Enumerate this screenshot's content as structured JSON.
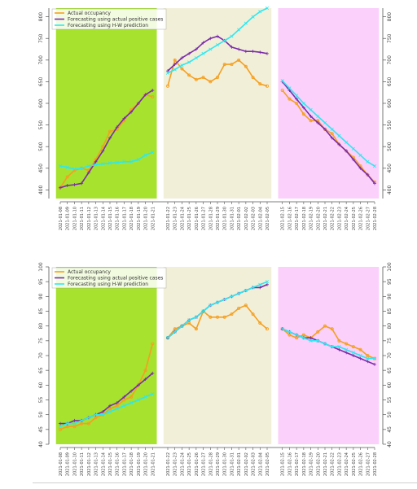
{
  "chart_data": [
    {
      "type": "line",
      "title": "",
      "xlabel": "",
      "ylabel": "",
      "grid": false,
      "legend_position": "top-left",
      "ylim": [
        380,
        820
      ],
      "yticks": [
        400,
        450,
        500,
        550,
        600,
        650,
        700,
        750,
        800
      ],
      "x": [
        "2021-01-08",
        "2021-01-09",
        "2021-01-10",
        "2021-01-11",
        "2021-01-12",
        "2021-01-13",
        "2021-01-14",
        "2021-01-15",
        "2021-01-16",
        "2021-01-17",
        "2021-01-18",
        "2021-01-19",
        "2021-01-20",
        "2021-01-21",
        "2021-01-22",
        "2021-01-23",
        "2021-01-24",
        "2021-01-25",
        "2021-01-26",
        "2021-01-27",
        "2021-01-28",
        "2021-01-29",
        "2021-01-30",
        "2021-01-31",
        "2021-02-01",
        "2021-02-02",
        "2021-02-03",
        "2021-02-04",
        "2021-02-05",
        "2021-02-15",
        "2021-02-16",
        "2021-02-17",
        "2021-02-18",
        "2021-02-19",
        "2021-02-20",
        "2021-02-21",
        "2021-02-22",
        "2021-02-23",
        "2021-02-24",
        "2021-02-25",
        "2021-02-26",
        "2021-02-27",
        "2021-02-28"
      ],
      "regions": [
        {
          "start": 0,
          "end": 13,
          "color": "#a6e22e"
        },
        {
          "start": 14,
          "end": 28,
          "color": "#f2efd9"
        },
        {
          "start": 29,
          "end": 42,
          "color": "#fbd0fb"
        }
      ],
      "series": [
        {
          "name": "Actual occupancy",
          "color": "#f4a020",
          "marker": "o",
          "values": [
            405,
            430,
            445,
            450,
            445,
            470,
            500,
            535,
            540,
            560,
            585,
            600,
            620,
            615,
            640,
            700,
            680,
            665,
            655,
            660,
            650,
            660,
            690,
            690,
            700,
            685,
            660,
            645,
            640,
            630,
            610,
            600,
            575,
            560,
            560,
            540,
            530,
            505,
            490,
            475,
            455,
            435,
            418
          ]
        },
        {
          "name": "Forecasting using actual positive cases",
          "color": "#7a2ca8",
          "marker": "+",
          "values": [
            405,
            410,
            412,
            415,
            440,
            465,
            490,
            520,
            545,
            565,
            580,
            600,
            620,
            630,
            675,
            690,
            705,
            715,
            725,
            740,
            750,
            755,
            745,
            730,
            725,
            720,
            720,
            718,
            715,
            650,
            630,
            610,
            590,
            570,
            555,
            540,
            520,
            505,
            490,
            470,
            450,
            435,
            415
          ]
        },
        {
          "name": "Forecasting using H-W prediction",
          "color": "#2ee8f0",
          "marker": "x",
          "values": [
            455,
            452,
            448,
            450,
            455,
            458,
            460,
            462,
            463,
            465,
            465,
            470,
            480,
            487,
            670,
            678,
            688,
            695,
            705,
            715,
            725,
            735,
            745,
            755,
            770,
            785,
            800,
            812,
            820,
            652,
            635,
            618,
            600,
            585,
            570,
            555,
            540,
            525,
            510,
            495,
            480,
            465,
            455
          ]
        }
      ]
    },
    {
      "type": "line",
      "title": "",
      "xlabel": "",
      "ylabel": "",
      "grid": false,
      "legend_position": "top-left",
      "ylim": [
        40,
        100
      ],
      "yticks": [
        40,
        45,
        50,
        55,
        60,
        65,
        70,
        75,
        80,
        85,
        90,
        95,
        100
      ],
      "x": [
        "2021-01-08",
        "2021-01-09",
        "2021-01-10",
        "2021-01-11",
        "2021-01-12",
        "2021-01-13",
        "2021-01-14",
        "2021-01-15",
        "2021-01-16",
        "2021-01-17",
        "2021-01-18",
        "2021-01-19",
        "2021-01-20",
        "2021-01-21",
        "2021-01-22",
        "2021-01-23",
        "2021-01-24",
        "2021-01-25",
        "2021-01-26",
        "2021-01-27",
        "2021-01-28",
        "2021-01-29",
        "2021-01-30",
        "2021-01-31",
        "2021-02-01",
        "2021-02-02",
        "2021-02-03",
        "2021-02-04",
        "2021-02-05",
        "2021-02-15",
        "2021-02-16",
        "2021-02-17",
        "2021-02-18",
        "2021-02-19",
        "2021-02-20",
        "2021-02-21",
        "2021-02-22",
        "2021-02-23",
        "2021-02-24",
        "2021-02-25",
        "2021-02-26",
        "2021-02-27",
        "2021-02-28"
      ],
      "regions": [
        {
          "start": 0,
          "end": 13,
          "color": "#a6e22e"
        },
        {
          "start": 14,
          "end": 28,
          "color": "#f2efd9"
        },
        {
          "start": 29,
          "end": 42,
          "color": "#fbd0fb"
        }
      ],
      "series": [
        {
          "name": "Actual occupancy",
          "color": "#f4a020",
          "marker": "o",
          "values": [
            45,
            46,
            46,
            47,
            47,
            49,
            50,
            52,
            53,
            55,
            56,
            60,
            65,
            74,
            76,
            79,
            80,
            81,
            79,
            85,
            83,
            83,
            83,
            84,
            86,
            87,
            84,
            81,
            79,
            79,
            77,
            76,
            77,
            76,
            78,
            80,
            79,
            75,
            74,
            73,
            72,
            70,
            69
          ]
        },
        {
          "name": "Forecasting using actual positive cases",
          "color": "#7a2ca8",
          "marker": "+",
          "values": [
            47,
            47,
            48,
            48,
            49,
            50,
            51,
            53,
            54,
            56,
            58,
            60,
            62,
            64,
            76,
            78,
            80,
            82,
            83,
            85,
            87,
            88,
            89,
            90,
            91,
            92,
            93,
            93,
            94,
            79,
            78,
            77,
            76,
            76,
            75,
            74,
            73,
            72,
            71,
            70,
            69,
            68,
            67
          ]
        },
        {
          "name": "Forecasting using H-W prediction",
          "color": "#2ee8f0",
          "marker": "x",
          "values": [
            46,
            47,
            47,
            48,
            49,
            50,
            50,
            51,
            52,
            53,
            54,
            55,
            56,
            57,
            76,
            78,
            80,
            82,
            83,
            85,
            87,
            88,
            89,
            90,
            91,
            92,
            93,
            94,
            95,
            79,
            78,
            77,
            76,
            75,
            75,
            74,
            73,
            73,
            72,
            71,
            70,
            69,
            69
          ]
        }
      ]
    }
  ]
}
